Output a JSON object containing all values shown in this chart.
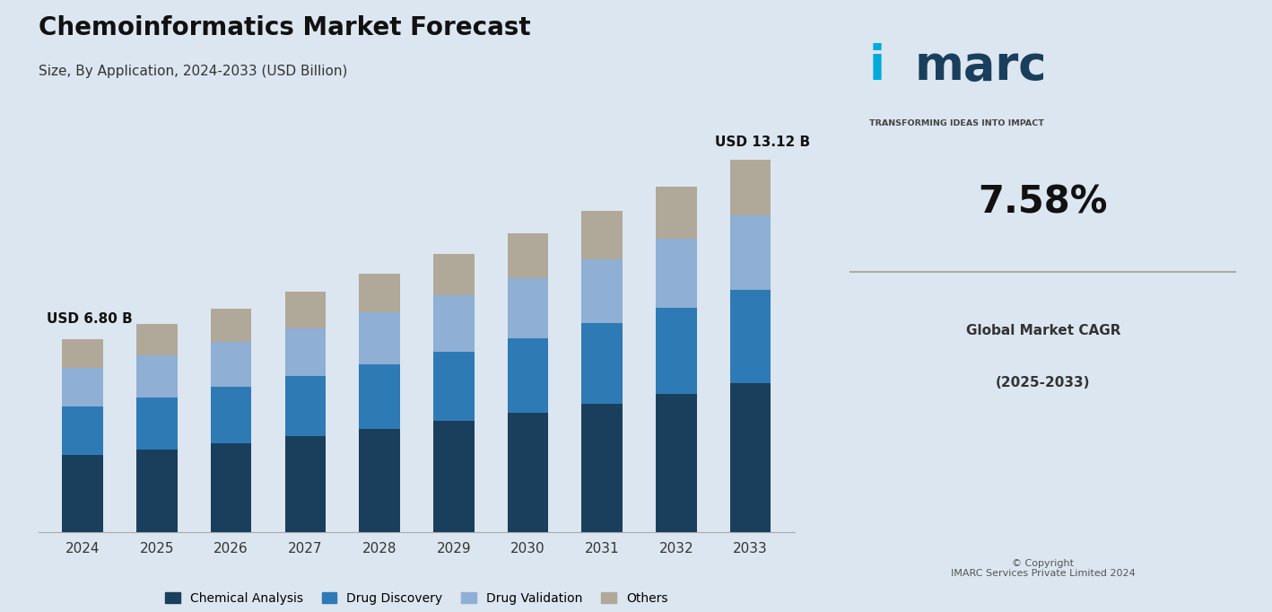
{
  "title": "Chemoinformatics Market Forecast",
  "subtitle": "Size, By Application, 2024-2033 (USD Billion)",
  "years": [
    2024,
    2025,
    2026,
    2027,
    2028,
    2029,
    2030,
    2031,
    2032,
    2033
  ],
  "totals": [
    6.8,
    7.32,
    7.87,
    8.46,
    9.1,
    9.79,
    10.53,
    11.32,
    12.17,
    13.12
  ],
  "segments": {
    "Chemical Analysis": [
      2.72,
      2.93,
      3.15,
      3.38,
      3.64,
      3.92,
      4.21,
      4.53,
      4.87,
      5.25
    ],
    "Drug Discovery": [
      1.7,
      1.83,
      1.97,
      2.12,
      2.28,
      2.45,
      2.63,
      2.83,
      3.04,
      3.28
    ],
    "Drug Validation": [
      1.36,
      1.46,
      1.57,
      1.69,
      1.82,
      1.96,
      2.11,
      2.26,
      2.43,
      2.62
    ],
    "Others": [
      1.02,
      1.1,
      1.18,
      1.27,
      1.36,
      1.46,
      1.58,
      1.7,
      1.83,
      1.97
    ]
  },
  "colors": {
    "Chemical Analysis": "#1a3f5c",
    "Drug Discovery": "#2e7ab5",
    "Drug Validation": "#8fafd4",
    "Others": "#b0a899"
  },
  "annotation_2024": "USD 6.80 B",
  "annotation_2033": "USD 13.12 B",
  "bg_color": "#dce6f0",
  "plot_bg_color": "#dce6f0",
  "right_panel_bg": "#f0f0f0",
  "bar_width": 0.55,
  "ylim": [
    0,
    15.5
  ],
  "cagr_text": "7.58%",
  "cagr_label1": "Global Market CAGR",
  "cagr_label2": "(2025-2033)",
  "imarc_text": "imarc",
  "imarc_tagline": "TRANSFORMING IDEAS INTO IMPACT",
  "copyright_text": "© Copyright\nIMARC Services Private Limited 2024"
}
